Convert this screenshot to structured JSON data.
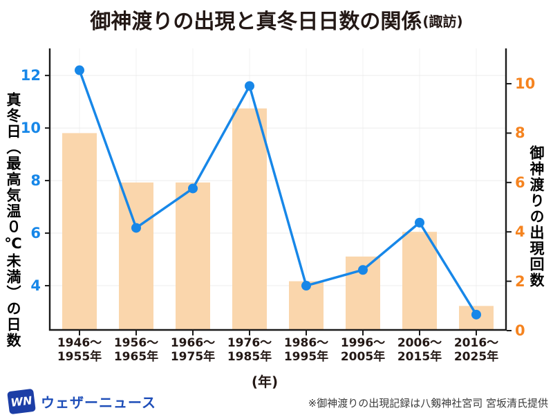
{
  "title": {
    "main": "御神渡りの出現と真冬日日数の関係",
    "suffix": "(諏訪)"
  },
  "chart_data": {
    "type": "bar",
    "combo": "bar+line",
    "title": "御神渡りの出現と真冬日日数の関係(諏訪)",
    "categories": [
      [
        "1946～",
        "1955年"
      ],
      [
        "1956～",
        "1965年"
      ],
      [
        "1966～",
        "1975年"
      ],
      [
        "1976～",
        "1985年"
      ],
      [
        "1986～",
        "1995年"
      ],
      [
        "1996～",
        "2005年"
      ],
      [
        "2006～",
        "2015年"
      ],
      [
        "2016～",
        "2025年"
      ]
    ],
    "x_label": "(年)",
    "series": [
      {
        "name": "御神渡りの出現回数",
        "type": "bar",
        "axis": "right",
        "color": "#FAD6AC",
        "values": [
          8,
          6,
          6,
          9,
          2,
          3,
          4,
          1
        ]
      },
      {
        "name": "真冬日（最高気温０℃未満）の日数",
        "type": "line",
        "axis": "left",
        "color": "#1787E8",
        "values": [
          12.2,
          6.2,
          7.7,
          11.6,
          4.0,
          4.6,
          6.4,
          2.9
        ]
      }
    ],
    "left_axis": {
      "label": "真冬日（最高気温０℃未満）の日数",
      "color": "#1787E8",
      "ticks": [
        12,
        10,
        8,
        6,
        4
      ],
      "range": [
        2.29,
        13.03
      ],
      "grid": true
    },
    "right_axis": {
      "label": "御神渡りの出現回数",
      "color": "#F5831F",
      "ticks": [
        0,
        2,
        4,
        6,
        8,
        10
      ],
      "range": [
        0,
        11.43
      ],
      "grid": false
    },
    "colors": {
      "axis_line": "#1a1a1a",
      "grid_h": "#ececec",
      "grid_v": "#f2f2f2"
    }
  },
  "footer": {
    "logo_wn": "WN",
    "logo_text": "ウェザーニュース",
    "note": "※御神渡りの出現記録は八剱神社宮司 宮坂清氏提供"
  }
}
